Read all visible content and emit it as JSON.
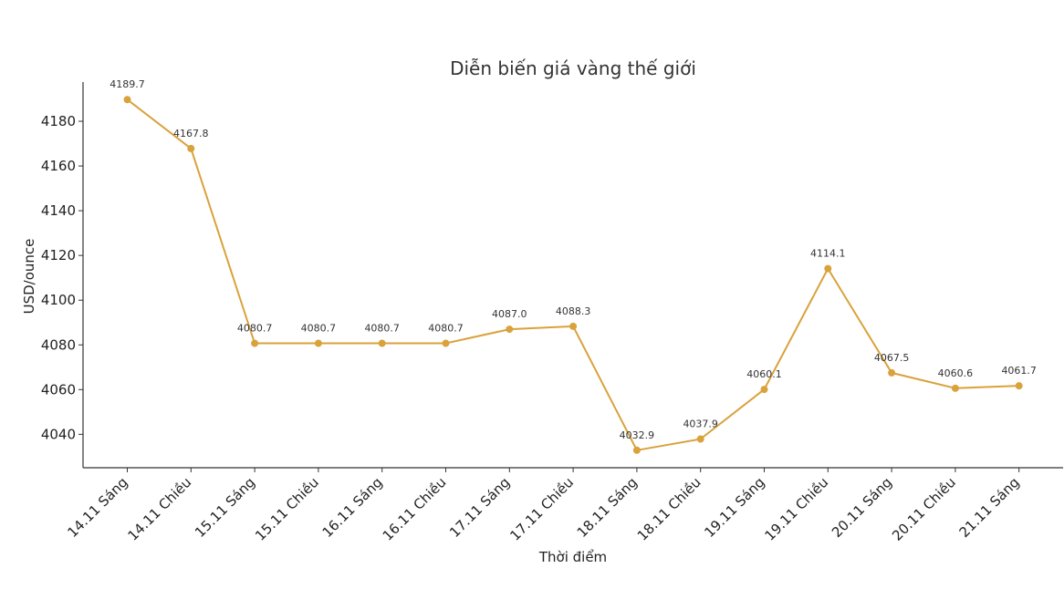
{
  "chart_data": {
    "type": "line",
    "title": "Diễn biến giá vàng thế giới",
    "xlabel": "Thời điểm",
    "ylabel": "USD/ounce",
    "categories": [
      "14.11 Sáng",
      "14.11 Chiều",
      "15.11 Sáng",
      "15.11 Chiều",
      "16.11 Sáng",
      "16.11 Chiều",
      "17.11 Sáng",
      "17.11 Chiều",
      "18.11 Sáng",
      "18.11 Chiều",
      "19.11 Sáng",
      "19.11 Chiều",
      "20.11 Sáng",
      "20.11 Chiều",
      "21.11 Sáng"
    ],
    "values": [
      4189.7,
      4167.8,
      4080.7,
      4080.7,
      4080.7,
      4080.7,
      4087.0,
      4088.3,
      4032.9,
      4037.9,
      4060.1,
      4114.1,
      4067.5,
      4060.6,
      4061.7
    ],
    "data_labels": [
      "4189.7",
      "4167.8",
      "4080.7",
      "4080.7",
      "4080.7",
      "4080.7",
      "4087.0",
      "4088.3",
      "4032.9",
      "4037.9",
      "4060.1",
      "4114.1",
      "4067.5",
      "4060.6",
      "4061.7"
    ],
    "yticks": [
      4040,
      4060,
      4080,
      4100,
      4120,
      4140,
      4160,
      4180
    ],
    "ylim": [
      4025.06,
      4197.54
    ],
    "grid": false,
    "line_color": "#d9a23b"
  }
}
